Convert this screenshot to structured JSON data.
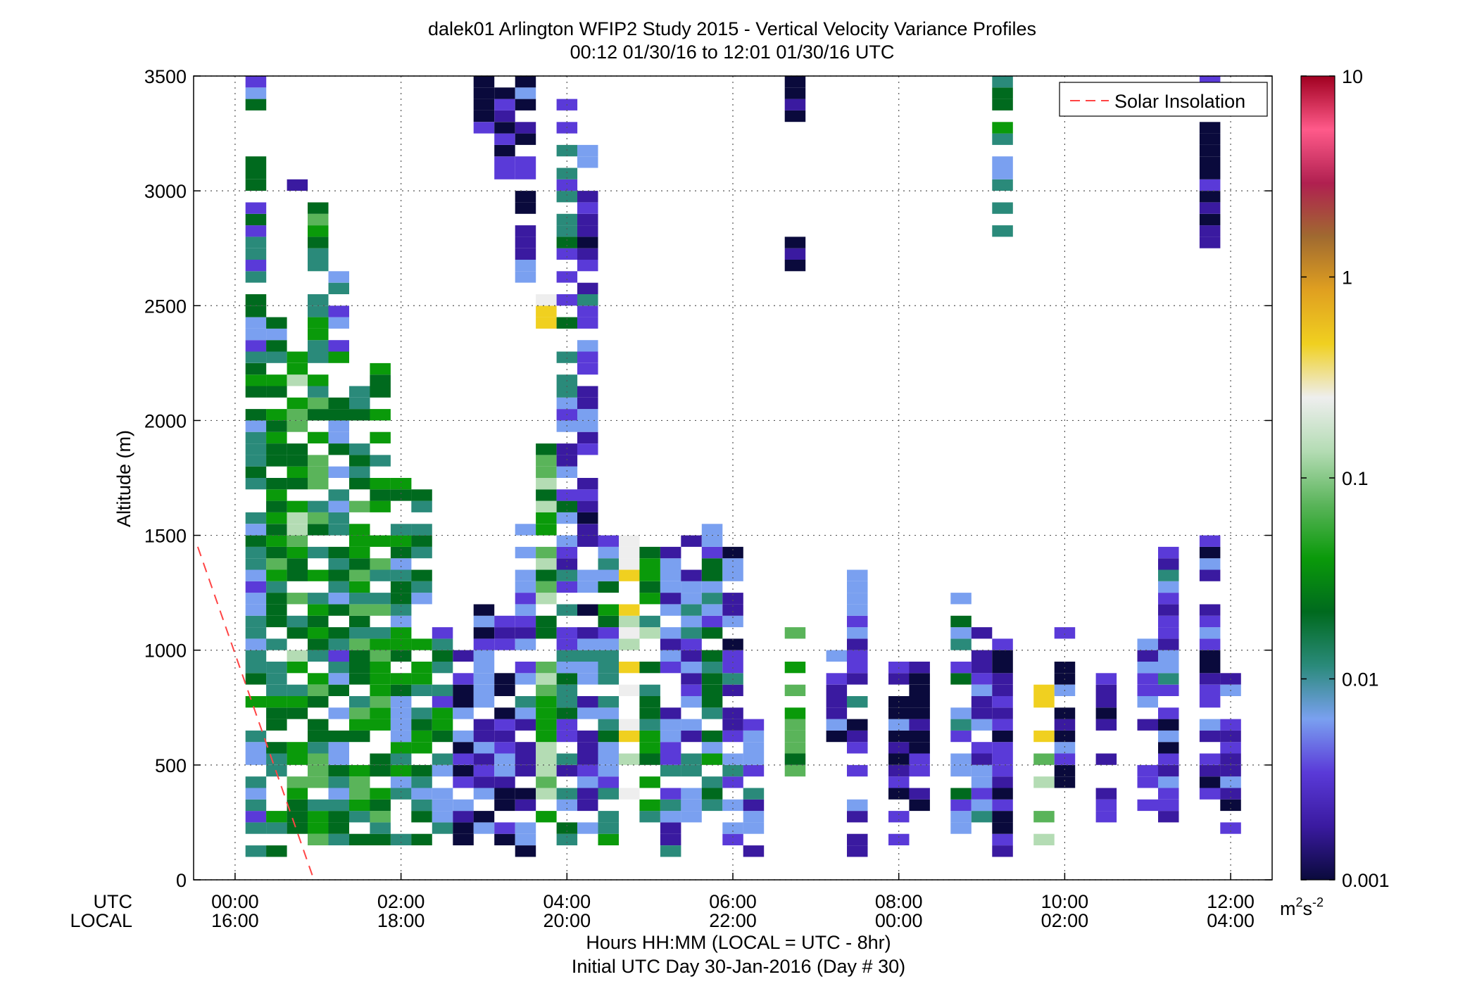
{
  "chart_data": {
    "type": "heatmap",
    "title_line1": "dalek01 Arlington WFIP2 Study 2015 - Vertical Velocity Variance Profiles",
    "title_line2": "00:12 01/30/16 to 12:01 01/30/16  UTC",
    "ylabel": "Altitude (m)",
    "xlabel_line1": "Hours HH:MM  (LOCAL = UTC - 8hr)",
    "xlabel_line2": "Initial UTC Day 30-Jan-2016 (Day # 30)",
    "utc_row_label": "UTC",
    "local_row_label": "LOCAL",
    "ylim": [
      0,
      3500
    ],
    "xlim_hours": [
      -0.5,
      12.5
    ],
    "y_ticks": [
      "0",
      "500",
      "1000",
      "1500",
      "2000",
      "2500",
      "3000",
      "3500"
    ],
    "x_ticks_utc": [
      "00:00",
      "02:00",
      "04:00",
      "06:00",
      "08:00",
      "10:00",
      "12:00"
    ],
    "x_ticks_local": [
      "16:00",
      "18:00",
      "20:00",
      "22:00",
      "00:00",
      "02:00",
      "04:00"
    ],
    "grid": true,
    "legend": {
      "label": "Solar Insolation",
      "position": "top-right",
      "color": "#ff4444"
    },
    "colorbar": {
      "scale": "log",
      "range": [
        0.001,
        10
      ],
      "tick_labels": [
        "10",
        "1",
        "0.1",
        "0.01",
        "0.001"
      ],
      "units_base": "m",
      "units_exp1": "2",
      "units_mid": "s",
      "units_exp2": "-2",
      "colors": [
        "#0a0a3c",
        "#3a1aa0",
        "#5a3ad8",
        "#7aa0f0",
        "#2a8a7a",
        "#006a1e",
        "#0a9a0a",
        "#5ab45a",
        "#b4dcb4",
        "#eeeeee",
        "#f0d020",
        "#e0a020",
        "#a06a30",
        "#b02050",
        "#ff5a8a",
        "#a00020"
      ]
    },
    "solar_insolation_line": {
      "x_hours": [
        -0.45,
        0.95
      ],
      "y_m": [
        1450,
        0
      ]
    },
    "gate_height_m": 50,
    "profiles_x_hours": [
      0.25,
      0.5,
      0.75,
      1.0,
      1.25,
      1.5,
      1.75,
      2.0,
      2.25,
      2.5,
      2.75,
      3.0,
      3.25,
      3.5,
      3.75,
      4.0,
      4.25,
      4.5,
      4.75,
      5.0,
      5.25,
      5.5,
      5.75,
      6.0,
      6.25,
      6.5,
      6.75,
      7.0,
      7.25,
      7.5,
      7.75,
      8.0,
      8.25,
      8.5,
      8.75,
      9.0,
      9.25,
      9.5,
      9.75,
      10.0,
      10.25,
      10.5,
      10.75,
      11.0,
      11.25,
      11.5,
      11.75,
      12.0
    ],
    "profiles": [
      {
        "x": 0.25,
        "y_range": [
          100,
          3500
        ],
        "v": 0.012
      },
      {
        "x": 0.5,
        "y_range": [
          100,
          2450
        ],
        "v": 0.025
      },
      {
        "x": 0.75,
        "y_range": [
          150,
          2300
        ],
        "v": 0.045
      },
      {
        "x": 0.75,
        "y_range": [
          3000,
          3050
        ],
        "v": 0.005
      },
      {
        "x": 1.0,
        "y_range": [
          150,
          2950
        ],
        "v": 0.035
      },
      {
        "x": 1.25,
        "y_range": [
          150,
          2650
        ],
        "v": 0.015
      },
      {
        "x": 1.5,
        "y_range": [
          150,
          2300
        ],
        "v": 0.03
      },
      {
        "x": 1.75,
        "y_range": [
          150,
          2250
        ],
        "v": 0.028
      },
      {
        "x": 2.0,
        "y_range": [
          150,
          1750
        ],
        "v": 0.02
      },
      {
        "x": 2.25,
        "y_range": [
          150,
          1700
        ],
        "v": 0.018
      },
      {
        "x": 2.5,
        "y_range": [
          200,
          1100
        ],
        "v": 0.012
      },
      {
        "x": 2.75,
        "y_range": [
          150,
          1000
        ],
        "v": 0.003
      },
      {
        "x": 3.0,
        "y_range": [
          200,
          1250
        ],
        "v": 0.004
      },
      {
        "x": 3.0,
        "y_range": [
          3250,
          3500
        ],
        "v": 0.002
      },
      {
        "x": 3.25,
        "y_range": [
          150,
          1150
        ],
        "v": 0.003
      },
      {
        "x": 3.25,
        "y_range": [
          3050,
          3500
        ],
        "v": 0.002
      },
      {
        "x": 3.5,
        "y_range": [
          100,
          1550
        ],
        "v": 0.004
      },
      {
        "x": 3.5,
        "y_range": [
          2600,
          3500
        ],
        "v": 0.003
      },
      {
        "x": 3.75,
        "y_range": [
          150,
          1900
        ],
        "v": 0.06
      },
      {
        "x": 3.75,
        "y_range": [
          2400,
          2550
        ],
        "v": 0.5
      },
      {
        "x": 4.0,
        "y_range": [
          150,
          3450
        ],
        "v": 0.008
      },
      {
        "x": 4.25,
        "y_range": [
          200,
          3200
        ],
        "v": 0.004
      },
      {
        "x": 4.5,
        "y_range": [
          150,
          1500
        ],
        "v": 0.012
      },
      {
        "x": 4.75,
        "y_range": [
          350,
          1500
        ],
        "v": 0.25
      },
      {
        "x": 5.0,
        "y_range": [
          200,
          1450
        ],
        "v": 0.04
      },
      {
        "x": 5.25,
        "y_range": [
          100,
          1450
        ],
        "v": 0.005
      },
      {
        "x": 5.5,
        "y_range": [
          250,
          1500
        ],
        "v": 0.006
      },
      {
        "x": 5.75,
        "y_range": [
          300,
          1550
        ],
        "v": 0.012
      },
      {
        "x": 6.0,
        "y_range": [
          100,
          1450
        ],
        "v": 0.004
      },
      {
        "x": 6.25,
        "y_range": [
          100,
          700
        ],
        "v": 0.005
      },
      {
        "x": 6.75,
        "y_range": [
          450,
          1100
        ],
        "v": 0.04
      },
      {
        "x": 6.75,
        "y_range": [
          2650,
          2800
        ],
        "v": 0.002
      },
      {
        "x": 6.75,
        "y_range": [
          3300,
          3500
        ],
        "v": 0.002
      },
      {
        "x": 7.25,
        "y_range": [
          600,
          1000
        ],
        "v": 0.003
      },
      {
        "x": 7.5,
        "y_range": [
          100,
          1350
        ],
        "v": 0.004
      },
      {
        "x": 8.0,
        "y_range": [
          150,
          1050
        ],
        "v": 0.003
      },
      {
        "x": 8.25,
        "y_range": [
          200,
          950
        ],
        "v": 0.002
      },
      {
        "x": 8.75,
        "y_range": [
          150,
          1250
        ],
        "v": 0.01
      },
      {
        "x": 9.0,
        "y_range": [
          200,
          1100
        ],
        "v": 0.004
      },
      {
        "x": 9.25,
        "y_range": [
          100,
          1050
        ],
        "v": 0.002
      },
      {
        "x": 9.25,
        "y_range": [
          2800,
          3500
        ],
        "v": 0.012
      },
      {
        "x": 9.75,
        "y_range": [
          150,
          850
        ],
        "v": 0.15
      },
      {
        "x": 10.0,
        "y_range": [
          400,
          1100
        ],
        "v": 0.003
      },
      {
        "x": 10.5,
        "y_range": [
          250,
          900
        ],
        "v": 0.002
      },
      {
        "x": 11.0,
        "y_range": [
          300,
          1100
        ],
        "v": 0.003
      },
      {
        "x": 11.25,
        "y_range": [
          250,
          1500
        ],
        "v": 0.004
      },
      {
        "x": 11.75,
        "y_range": [
          350,
          1500
        ],
        "v": 0.003
      },
      {
        "x": 11.75,
        "y_range": [
          2750,
          3500
        ],
        "v": 0.002
      },
      {
        "x": 12.0,
        "y_range": [
          150,
          900
        ],
        "v": 0.003
      }
    ]
  }
}
